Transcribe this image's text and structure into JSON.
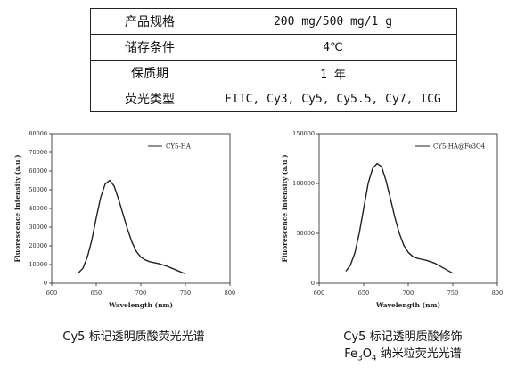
{
  "spec_table": {
    "rows": [
      {
        "label": "产品规格",
        "value": "200 mg/500 mg/1 g"
      },
      {
        "label": "储存条件",
        "value": "4℃"
      },
      {
        "label": "保质期",
        "value": "1 年"
      },
      {
        "label": "荧光类型",
        "value": "FITC, Cy3, Cy5, Cy5.5, Cy7, ICG"
      }
    ]
  },
  "chart_data": [
    {
      "type": "line",
      "xlabel": "Wavelength (nm)",
      "ylabel": "Fluorescence Intensity (a.u.)",
      "xlim": [
        600,
        800
      ],
      "ylim": [
        0,
        80000
      ],
      "xticks": [
        "600",
        "650",
        "700",
        "750",
        "800"
      ],
      "yticks": [
        "0",
        "10000",
        "20000",
        "30000",
        "40000",
        "50000",
        "60000",
        "70000",
        "80000"
      ],
      "legend": "top-right",
      "series": [
        {
          "name": "CY5-HA",
          "color": "#222222",
          "x": [
            630,
            635,
            640,
            645,
            650,
            655,
            660,
            665,
            670,
            675,
            680,
            685,
            690,
            695,
            700,
            705,
            710,
            720,
            730,
            740,
            750
          ],
          "y": [
            5500,
            8000,
            14000,
            23000,
            35000,
            46000,
            53000,
            55000,
            52000,
            45000,
            37000,
            29000,
            22000,
            17000,
            14000,
            12500,
            11500,
            10500,
            9000,
            7000,
            5000
          ]
        }
      ]
    },
    {
      "type": "line",
      "xlabel": "Wavelength (nm)",
      "ylabel": "Fluorescence Intensity (a.u.)",
      "xlim": [
        600,
        800
      ],
      "ylim": [
        0,
        150000
      ],
      "xticks": [
        "600",
        "650",
        "700",
        "750",
        "800"
      ],
      "yticks": [
        "0",
        "50000",
        "100000",
        "150000"
      ],
      "legend": "top-right",
      "series": [
        {
          "name": "CY5-HA@Fe3O4",
          "color": "#222222",
          "x": [
            630,
            635,
            640,
            645,
            650,
            655,
            660,
            665,
            670,
            675,
            680,
            685,
            690,
            695,
            700,
            705,
            710,
            720,
            730,
            740,
            750
          ],
          "y": [
            12000,
            18000,
            30000,
            50000,
            75000,
            100000,
            115000,
            120000,
            117000,
            103000,
            85000,
            66000,
            50000,
            38000,
            31000,
            27000,
            25000,
            23000,
            20000,
            15000,
            10000
          ]
        }
      ]
    }
  ],
  "captions": {
    "left": "Cy5 标记透明质酸荧光光谱",
    "right_line1": "Cy5 标记透明质酸修饰",
    "right_line2_pre": "Fe",
    "right_line2_sub1": "3",
    "right_line2_mid": "O",
    "right_line2_sub2": "4",
    "right_line2_post": " 纳米粒荧光光谱"
  }
}
